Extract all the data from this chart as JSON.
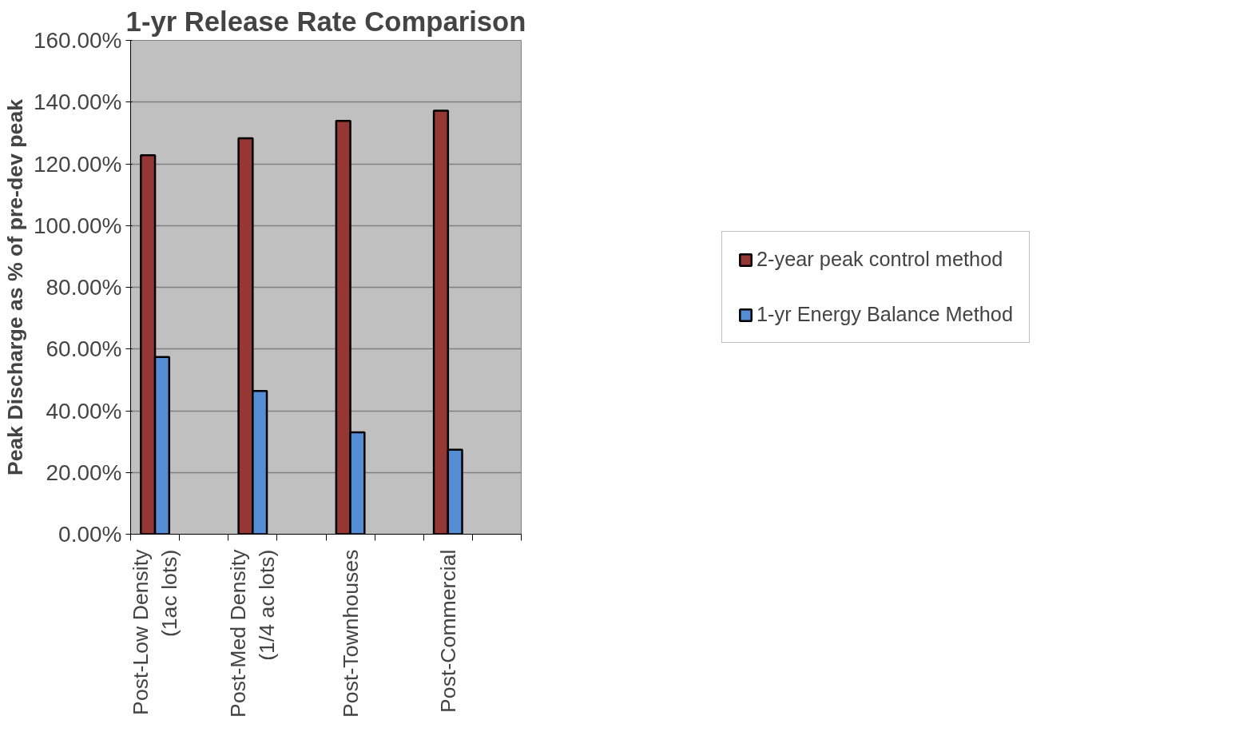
{
  "chart_data": {
    "type": "bar",
    "title": "1-yr Release Rate Comparison",
    "ylabel": "Peak Discharge as % of pre-dev peak",
    "categories": [
      "Post-Low Density\n(1ac lots)",
      null,
      "Post-Med Density\n(1/4 ac lots)",
      null,
      "Post-Townhouses",
      null,
      "Post-Commercial",
      null
    ],
    "series": [
      {
        "name": "2-year peak control method",
        "color": "#953735",
        "values": [
          122.8,
          null,
          128.3,
          null,
          133.9,
          null,
          137.2,
          null
        ]
      },
      {
        "name": "1-yr Energy Balance Method",
        "color": "#558ed5",
        "values": [
          57.4,
          null,
          46.4,
          null,
          33.0,
          null,
          27.4,
          null
        ]
      }
    ],
    "ylim": [
      0,
      160
    ],
    "yticks": [
      {
        "value": 0,
        "label": "0.00%"
      },
      {
        "value": 20,
        "label": "20.00%"
      },
      {
        "value": 40,
        "label": "40.00%"
      },
      {
        "value": 60,
        "label": "60.00%"
      },
      {
        "value": 80,
        "label": "80.00%"
      },
      {
        "value": 100,
        "label": "100.00%"
      },
      {
        "value": 120,
        "label": "120.00%"
      },
      {
        "value": 140,
        "label": "140.00%"
      },
      {
        "value": 160,
        "label": "160.00%"
      }
    ],
    "grid": "y",
    "legend": "right"
  }
}
